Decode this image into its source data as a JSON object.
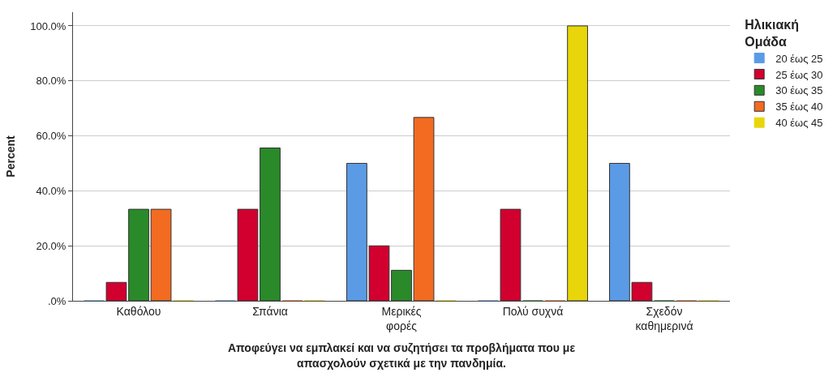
{
  "chart_data": {
    "type": "bar",
    "categories": [
      "Καθόλου",
      "Σπάνια",
      "Μερικές\nφορές",
      "Πολύ συχνά",
      "Σχεδόν\nκαθημερινά"
    ],
    "series": [
      {
        "name": "20 έως 25",
        "color": "#5b9be6",
        "values": [
          0,
          0,
          50.0,
          0,
          50.0
        ]
      },
      {
        "name": "25 έως 30",
        "color": "#d1002f",
        "values": [
          6.7,
          33.3,
          20.0,
          33.3,
          6.7
        ]
      },
      {
        "name": "30 έως 35",
        "color": "#2a8a2a",
        "values": [
          33.3,
          55.6,
          11.1,
          0,
          0
        ]
      },
      {
        "name": "35 έως 40",
        "color": "#f26b21",
        "values": [
          33.3,
          0,
          66.7,
          0,
          0
        ]
      },
      {
        "name": "40 έως 45",
        "color": "#e8d60b",
        "values": [
          0,
          0,
          0,
          100.0,
          0
        ]
      }
    ],
    "xlabel": "Αποφεύγει να εμπλακεί και να συζητήσει τα προβλήματα που με\nαπασχολούν σχετικά με την πανδημία.",
    "ylabel": "Percent",
    "legend_title": "Ηλικιακή\nΟμάδα",
    "ylim": [
      0,
      105
    ],
    "yticks": [
      {
        "value": 0,
        "label": ".0%"
      },
      {
        "value": 20,
        "label": "20.0%"
      },
      {
        "value": 40,
        "label": "40.0%"
      },
      {
        "value": 60,
        "label": "60.0%"
      },
      {
        "value": 80,
        "label": "80.0%"
      },
      {
        "value": 100,
        "label": "100.0%"
      }
    ],
    "grid": "y",
    "legend": "right"
  }
}
